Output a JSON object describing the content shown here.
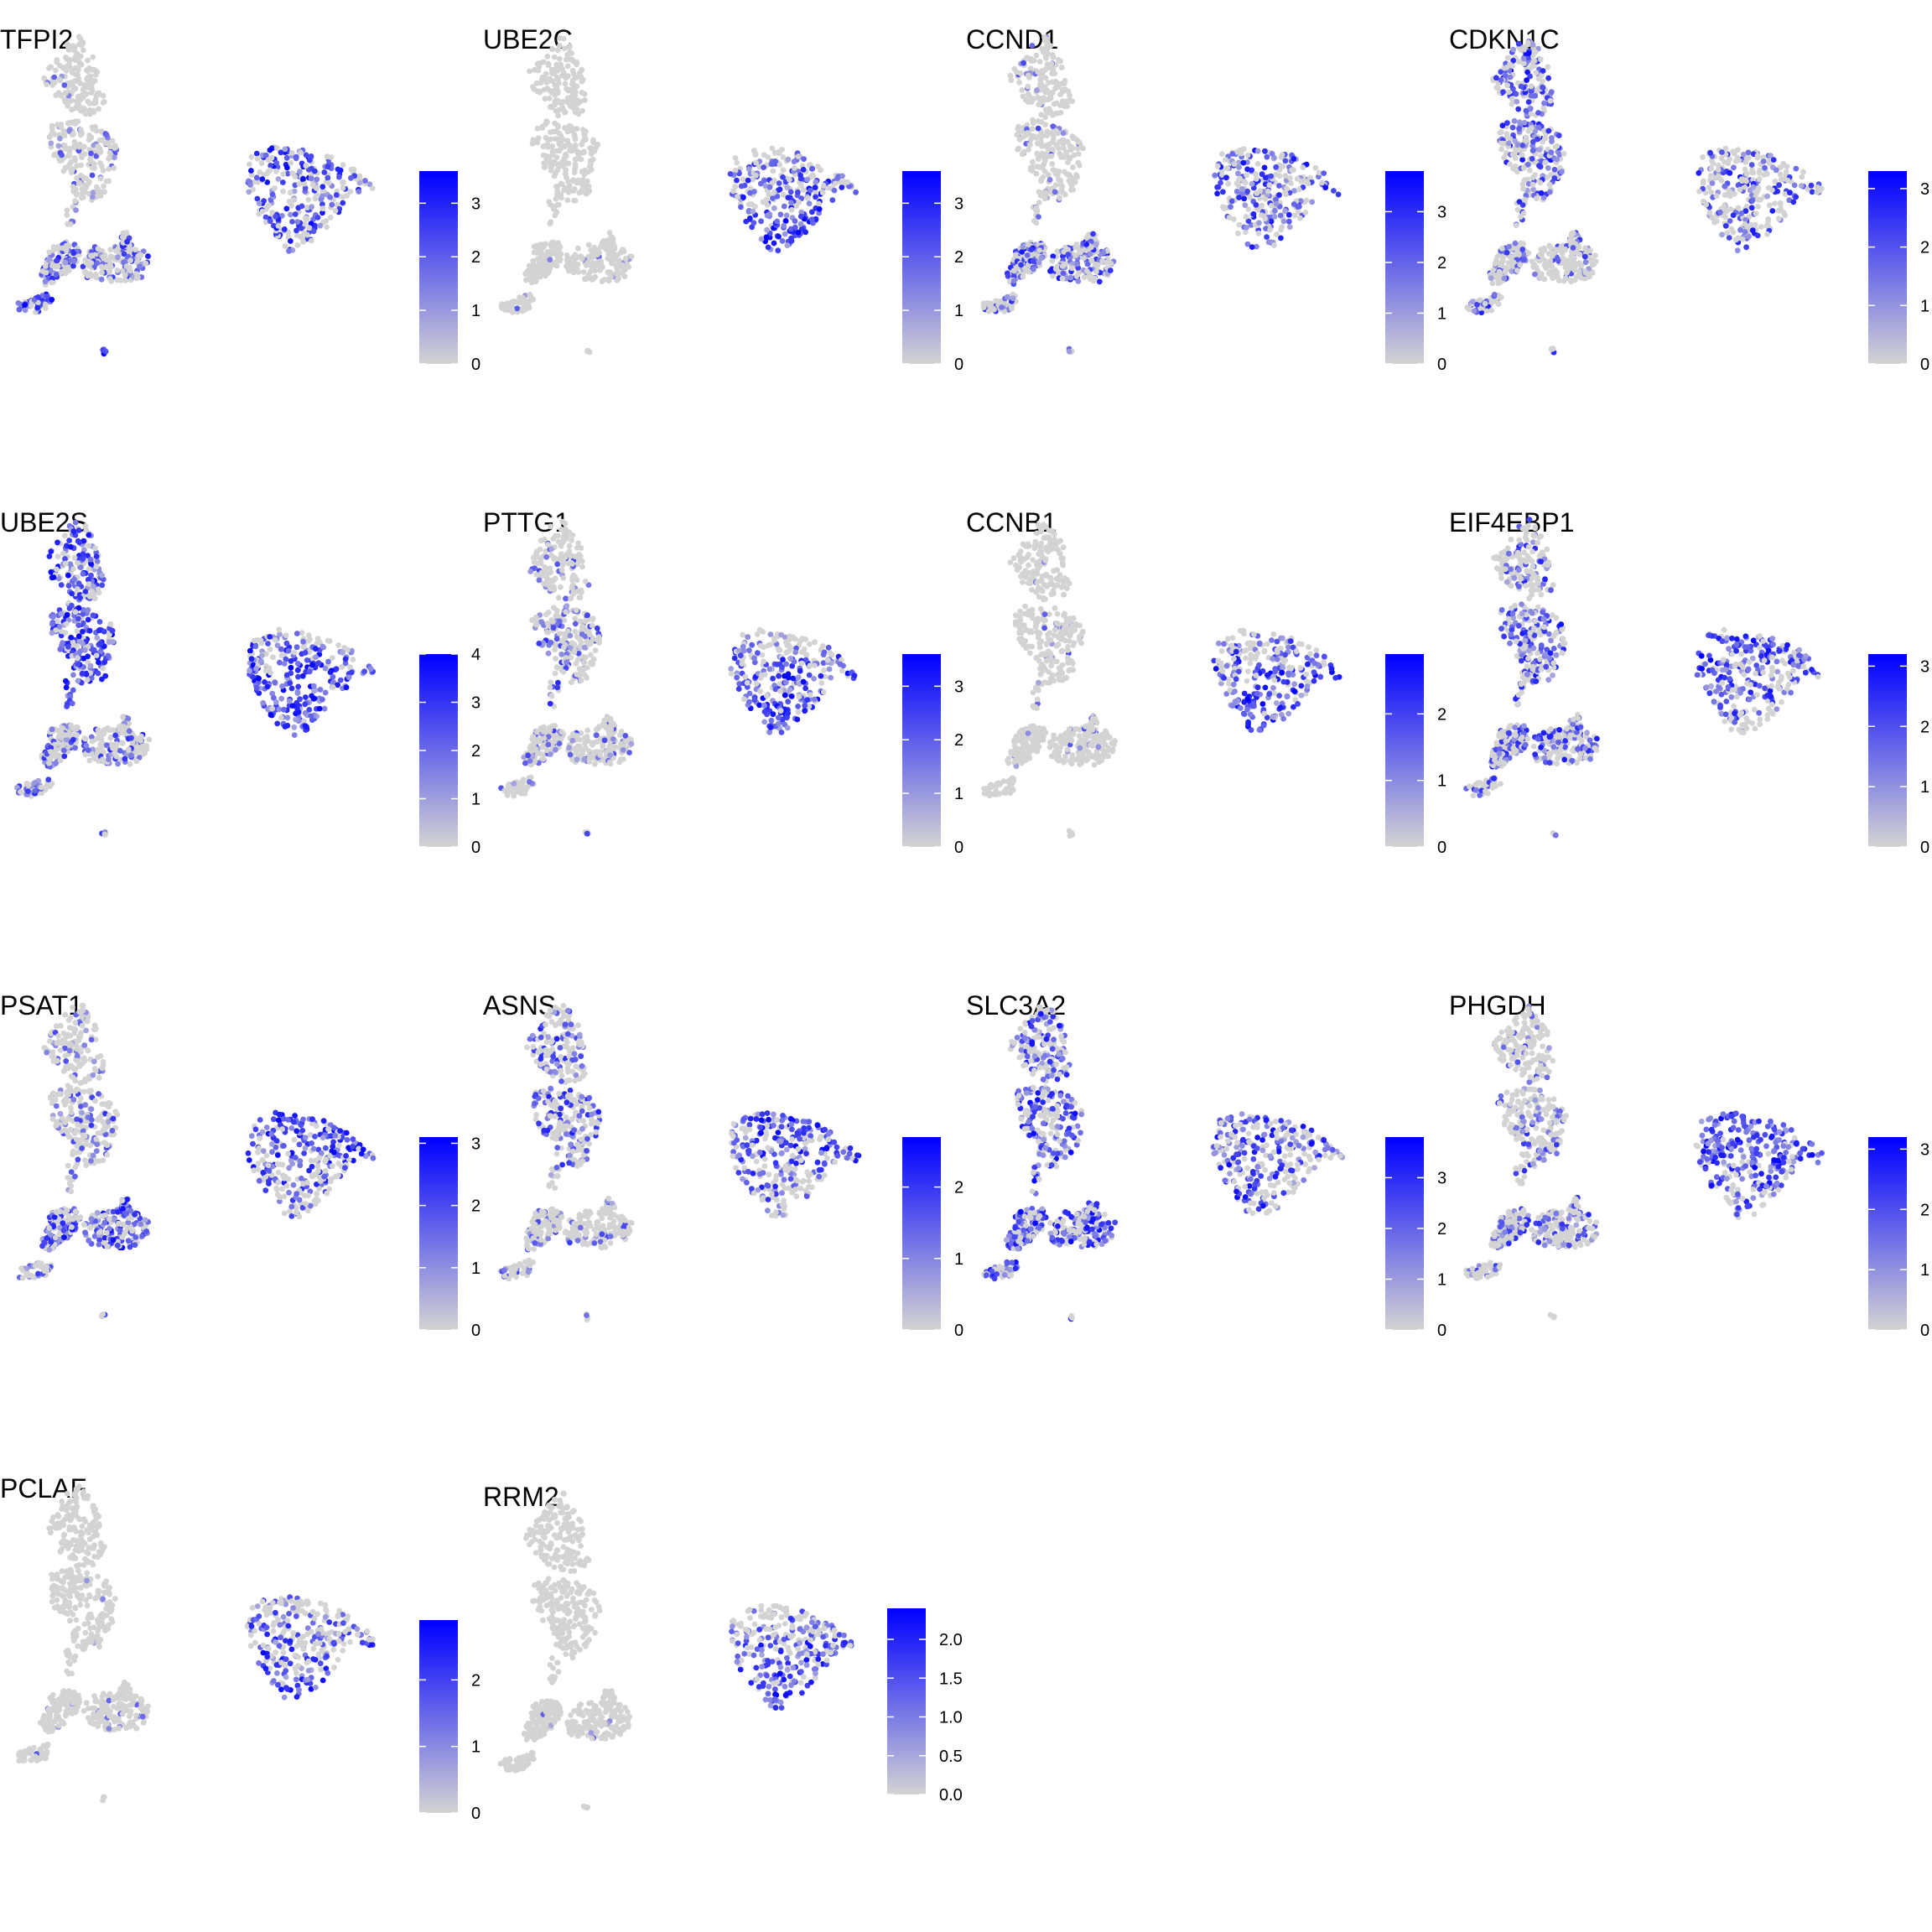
{
  "figure": {
    "type": "feature-plot grid",
    "columns": 4,
    "point_color_low": "#d3d3d3",
    "point_color_high": "#0000ff"
  },
  "chart_data": [
    {
      "type": "scatter",
      "title": "TFPI2",
      "legend_ticks": [
        "0",
        "1",
        "2",
        "3"
      ],
      "legend_tick_values": [
        0,
        1,
        2,
        3
      ],
      "scale_max": 3.6,
      "intensity": {
        "top": 0.02,
        "mid": 0.12,
        "lower": 0.32,
        "tail": 0.55,
        "right": 0.45,
        "right_pattern": "uniform"
      }
    },
    {
      "type": "scatter",
      "title": "UBE2C",
      "legend_ticks": [
        "0",
        "1",
        "2",
        "3"
      ],
      "legend_tick_values": [
        0,
        1,
        2,
        3
      ],
      "scale_max": 3.6,
      "intensity": {
        "top": 0.0,
        "mid": 0.0,
        "lower": 0.02,
        "tail": 0.02,
        "right": 0.55,
        "right_pattern": "bottom"
      }
    },
    {
      "type": "scatter",
      "title": "CCND1",
      "legend_ticks": [
        "0",
        "1",
        "2",
        "3"
      ],
      "legend_tick_values": [
        0,
        1,
        2,
        3
      ],
      "scale_max": 3.8,
      "intensity": {
        "top": 0.08,
        "mid": 0.1,
        "lower": 0.35,
        "tail": 0.3,
        "right": 0.4,
        "right_pattern": "uniform"
      }
    },
    {
      "type": "scatter",
      "title": "CDKN1C",
      "legend_ticks": [
        "0",
        "1",
        "2",
        "3"
      ],
      "legend_tick_values": [
        0,
        1,
        2,
        3
      ],
      "scale_max": 3.3,
      "intensity": {
        "top": 0.45,
        "mid": 0.4,
        "lower": 0.2,
        "tail": 0.3,
        "right": 0.35,
        "right_pattern": "uniform"
      }
    },
    {
      "type": "scatter",
      "title": "UBE2S",
      "legend_ticks": [
        "0",
        "1",
        "2",
        "3",
        "4"
      ],
      "legend_tick_values": [
        0,
        1,
        2,
        3,
        4
      ],
      "scale_max": 4.0,
      "intensity": {
        "top": 0.5,
        "mid": 0.6,
        "lower": 0.25,
        "tail": 0.35,
        "right": 0.85,
        "right_pattern": "bottom"
      }
    },
    {
      "type": "scatter",
      "title": "PTTG1",
      "legend_ticks": [
        "0",
        "1",
        "2",
        "3"
      ],
      "legend_tick_values": [
        0,
        1,
        2,
        3
      ],
      "scale_max": 3.6,
      "intensity": {
        "top": 0.12,
        "mid": 0.25,
        "lower": 0.15,
        "tail": 0.1,
        "right": 0.55,
        "right_pattern": "bottom"
      }
    },
    {
      "type": "scatter",
      "title": "CCNB1",
      "legend_ticks": [
        "0",
        "1",
        "2"
      ],
      "legend_tick_values": [
        0,
        1,
        2
      ],
      "scale_max": 2.9,
      "intensity": {
        "top": 0.02,
        "mid": 0.05,
        "lower": 0.05,
        "tail": 0.02,
        "right": 0.6,
        "right_pattern": "bottom"
      }
    },
    {
      "type": "scatter",
      "title": "EIF4EBP1",
      "legend_ticks": [
        "0",
        "1",
        "2",
        "3"
      ],
      "legend_tick_values": [
        0,
        1,
        2,
        3
      ],
      "scale_max": 3.2,
      "intensity": {
        "top": 0.3,
        "mid": 0.4,
        "lower": 0.35,
        "tail": 0.3,
        "right": 0.5,
        "right_pattern": "top"
      }
    },
    {
      "type": "scatter",
      "title": "PSAT1",
      "legend_ticks": [
        "0",
        "1",
        "2",
        "3"
      ],
      "legend_tick_values": [
        0,
        1,
        2,
        3
      ],
      "scale_max": 3.1,
      "intensity": {
        "top": 0.15,
        "mid": 0.2,
        "lower": 0.45,
        "tail": 0.25,
        "right": 0.5,
        "right_pattern": "top"
      }
    },
    {
      "type": "scatter",
      "title": "ASNS",
      "legend_ticks": [
        "0",
        "1",
        "2"
      ],
      "legend_tick_values": [
        0,
        1,
        2
      ],
      "scale_max": 2.7,
      "intensity": {
        "top": 0.35,
        "mid": 0.35,
        "lower": 0.15,
        "tail": 0.15,
        "right": 0.45,
        "right_pattern": "top"
      }
    },
    {
      "type": "scatter",
      "title": "SLC3A2",
      "legend_ticks": [
        "0",
        "1",
        "2",
        "3"
      ],
      "legend_tick_values": [
        0,
        1,
        2,
        3
      ],
      "scale_max": 3.8,
      "intensity": {
        "top": 0.4,
        "mid": 0.45,
        "lower": 0.5,
        "tail": 0.45,
        "right": 0.45,
        "right_pattern": "uniform"
      }
    },
    {
      "type": "scatter",
      "title": "PHGDH",
      "legend_ticks": [
        "0",
        "1",
        "2",
        "3"
      ],
      "legend_tick_values": [
        0,
        1,
        2,
        3
      ],
      "scale_max": 3.2,
      "intensity": {
        "top": 0.2,
        "mid": 0.25,
        "lower": 0.3,
        "tail": 0.15,
        "right": 0.65,
        "right_pattern": "top"
      }
    },
    {
      "type": "scatter",
      "title": "PCLAF",
      "legend_ticks": [
        "0",
        "1",
        "2"
      ],
      "legend_tick_values": [
        0,
        1,
        2
      ],
      "scale_max": 2.9,
      "intensity": {
        "top": 0.02,
        "mid": 0.02,
        "lower": 0.05,
        "tail": 0.02,
        "right": 0.45,
        "right_pattern": "bottom"
      }
    },
    {
      "type": "scatter",
      "title": "RRM2",
      "legend_ticks": [
        "0.0",
        "0.5",
        "1.0",
        "1.5",
        "2.0"
      ],
      "legend_tick_values": [
        0,
        0.5,
        1,
        1.5,
        2
      ],
      "scale_max": 2.4,
      "intensity": {
        "top": 0.0,
        "mid": 0.0,
        "lower": 0.02,
        "tail": 0.0,
        "right": 0.5,
        "right_pattern": "bottom"
      }
    }
  ]
}
